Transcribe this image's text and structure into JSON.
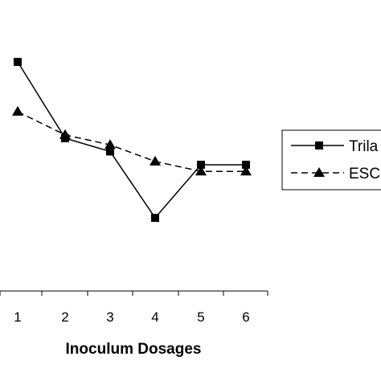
{
  "chart_data": {
    "type": "line",
    "categories": [
      "1",
      "2",
      "3",
      "4",
      "5",
      "6"
    ],
    "xlabel": "Inoculum Dosages",
    "ylabel": "",
    "title": "",
    "grid": false,
    "legend_position": "right",
    "series": [
      {
        "name": "Trila",
        "values": [
          9.0,
          6.7,
          6.3,
          4.3,
          5.9,
          5.9
        ],
        "line_style": "solid",
        "marker": "square",
        "color": "#000000"
      },
      {
        "name": "ESC",
        "values": [
          7.5,
          6.8,
          6.5,
          6.0,
          5.7,
          5.7
        ],
        "line_style": "dashed",
        "marker": "triangle",
        "color": "#000000"
      }
    ]
  }
}
